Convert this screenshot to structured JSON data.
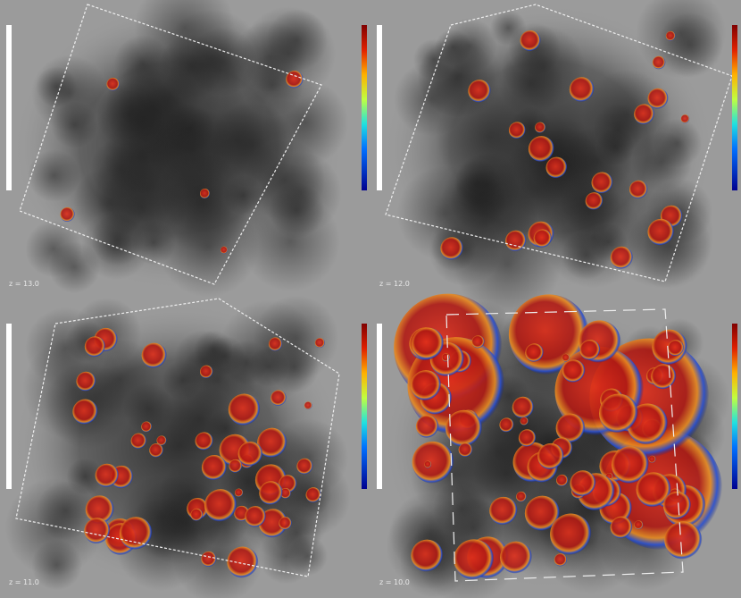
{
  "panels": [
    {
      "label": "z = 13.0"
    },
    {
      "label": "z = 12.0"
    },
    {
      "label": "z = 11.0"
    },
    {
      "label": "z = 10.0"
    }
  ]
}
